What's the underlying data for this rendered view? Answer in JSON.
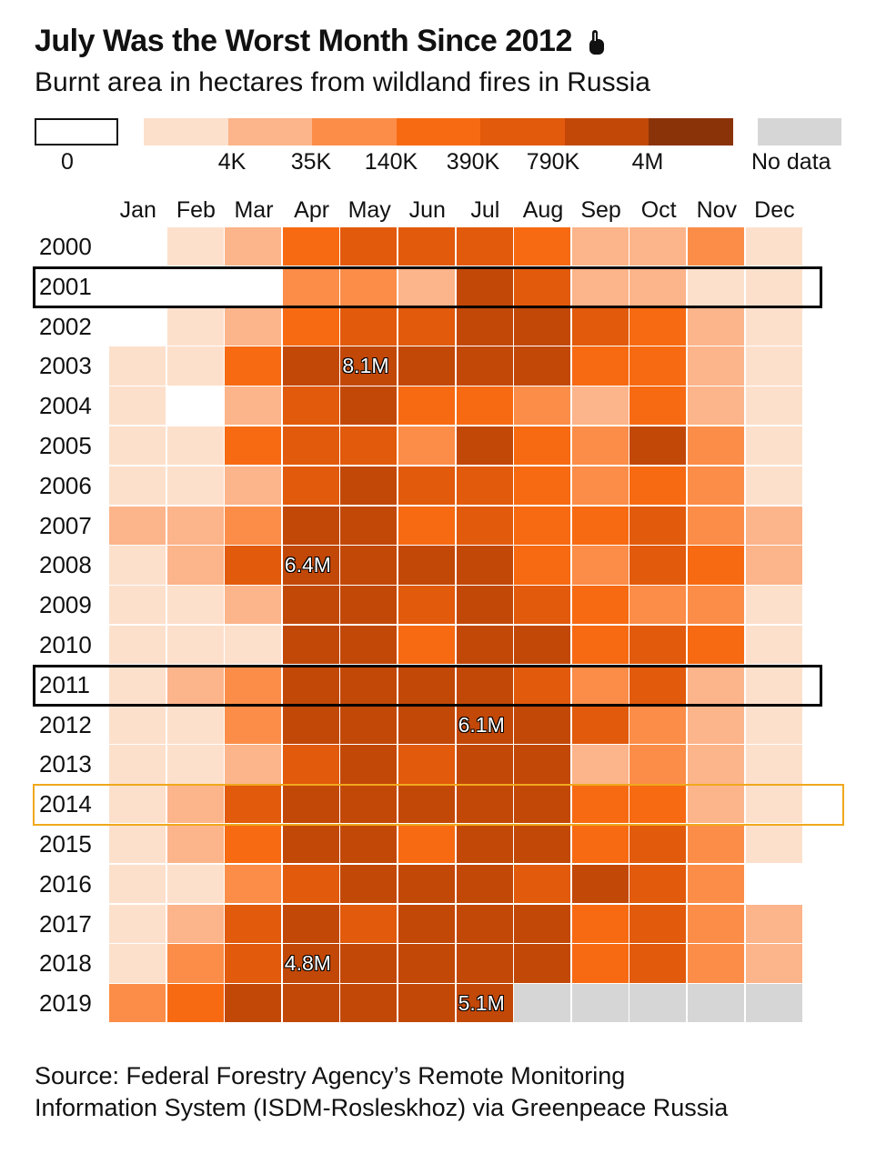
{
  "header": {
    "title": "July Was the Worst Month Since 2012",
    "subtitle": "Burnt area in hectares from wildland fires in Russia"
  },
  "legend": {
    "bins": [
      {
        "color": "#ffffff",
        "outline": true
      },
      {
        "color": "#fde0cc"
      },
      {
        "color": "#fcb48a"
      },
      {
        "color": "#fb8d48"
      },
      {
        "color": "#f76a12"
      },
      {
        "color": "#e25a0b"
      },
      {
        "color": "#c24808"
      },
      {
        "color": "#8b3308"
      },
      {
        "color": "#d6d6d6"
      }
    ],
    "labels": [
      "0",
      "4K",
      "35K",
      "140K",
      "390K",
      "790K",
      "4M",
      "No data"
    ]
  },
  "chart_data": {
    "type": "heatmap",
    "title": "July Was the Worst Month Since 2012",
    "subtitle": "Burnt area in hectares from wildland fires in Russia",
    "x": [
      "Jan",
      "Feb",
      "Mar",
      "Apr",
      "May",
      "Jun",
      "Jul",
      "Aug",
      "Sep",
      "Oct",
      "Nov",
      "Dec"
    ],
    "y": [
      "2000",
      "2001",
      "2002",
      "2003",
      "2004",
      "2005",
      "2006",
      "2007",
      "2008",
      "2009",
      "2010",
      "2011",
      "2012",
      "2013",
      "2014",
      "2015",
      "2016",
      "2017",
      "2018",
      "2019"
    ],
    "scale_bins": [
      "0",
      "4K",
      "35K",
      "140K",
      "390K",
      "790K",
      "4M"
    ],
    "bin_matrix": [
      [
        0,
        1,
        2,
        4,
        5,
        5,
        5,
        4,
        2,
        2,
        3,
        1
      ],
      [
        0,
        0,
        0,
        3,
        3,
        2,
        6,
        5,
        2,
        2,
        1,
        1
      ],
      [
        0,
        1,
        2,
        4,
        5,
        5,
        6,
        6,
        5,
        4,
        2,
        1
      ],
      [
        1,
        1,
        4,
        6,
        6,
        6,
        6,
        6,
        4,
        4,
        2,
        1
      ],
      [
        1,
        0,
        2,
        5,
        6,
        4,
        4,
        3,
        2,
        4,
        2,
        1
      ],
      [
        1,
        1,
        4,
        5,
        5,
        3,
        6,
        4,
        3,
        6,
        3,
        1
      ],
      [
        1,
        1,
        2,
        5,
        6,
        5,
        5,
        4,
        3,
        4,
        3,
        1
      ],
      [
        2,
        2,
        3,
        6,
        6,
        4,
        5,
        4,
        4,
        5,
        3,
        2
      ],
      [
        1,
        2,
        5,
        6,
        6,
        6,
        6,
        4,
        3,
        5,
        4,
        2
      ],
      [
        1,
        1,
        2,
        6,
        6,
        5,
        6,
        5,
        4,
        3,
        3,
        1
      ],
      [
        1,
        1,
        1,
        6,
        6,
        4,
        6,
        6,
        4,
        5,
        4,
        1
      ],
      [
        1,
        2,
        3,
        6,
        6,
        6,
        6,
        5,
        3,
        5,
        2,
        1
      ],
      [
        1,
        1,
        3,
        6,
        6,
        6,
        6,
        6,
        5,
        3,
        2,
        1
      ],
      [
        1,
        1,
        2,
        5,
        6,
        5,
        6,
        6,
        2,
        3,
        2,
        1
      ],
      [
        1,
        2,
        5,
        6,
        6,
        6,
        6,
        6,
        4,
        4,
        2,
        1
      ],
      [
        1,
        2,
        4,
        6,
        6,
        4,
        6,
        6,
        4,
        5,
        3,
        1
      ],
      [
        1,
        1,
        3,
        5,
        6,
        6,
        6,
        5,
        6,
        5,
        3,
        0
      ],
      [
        1,
        2,
        5,
        6,
        5,
        6,
        6,
        6,
        4,
        5,
        3,
        2
      ],
      [
        1,
        3,
        5,
        6,
        6,
        6,
        6,
        6,
        4,
        5,
        3,
        2
      ],
      [
        3,
        4,
        6,
        6,
        6,
        6,
        6,
        -1,
        -1,
        -1,
        -1,
        -1
      ]
    ],
    "annotations": [
      {
        "year": "2003",
        "month": "May",
        "label": "8.1M"
      },
      {
        "year": "2008",
        "month": "Apr",
        "label": "6.4M"
      },
      {
        "year": "2012",
        "month": "Jul",
        "label": "6.1M"
      },
      {
        "year": "2018",
        "month": "Apr",
        "label": "4.8M"
      },
      {
        "year": "2019",
        "month": "Jul",
        "label": "5.1M"
      }
    ],
    "highlighted_rows": [
      {
        "year": "2001",
        "color": "#000000"
      },
      {
        "year": "2011",
        "color": "#000000"
      },
      {
        "year": "2014",
        "color": "#f0a81c"
      }
    ]
  },
  "footer": {
    "source_line1": "Source: Federal Forestry Agency’s Remote Monitoring",
    "source_line2": "Information System (ISDM-Rosleskhoz) via Greenpeace Russia"
  }
}
